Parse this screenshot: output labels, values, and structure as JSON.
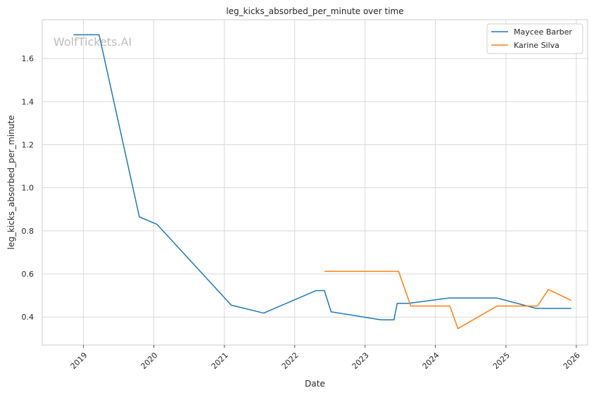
{
  "chart_data": {
    "type": "line",
    "title": "leg_kicks_absorbed_per_minute over time",
    "xlabel": "Date",
    "ylabel": "leg_kicks_absorbed_per_minute",
    "watermark": "WolfTickets.AI",
    "xlim": [
      "2018-06-01",
      "2026-03-01"
    ],
    "ylim": [
      0.27,
      1.78
    ],
    "x_ticks": [
      "2019",
      "2020",
      "2021",
      "2022",
      "2023",
      "2024",
      "2025",
      "2026"
    ],
    "y_ticks": [
      "0.4",
      "0.6",
      "0.8",
      "1.0",
      "1.2",
      "1.4",
      "1.6"
    ],
    "grid": true,
    "legend_position": "top-right",
    "series": [
      {
        "name": "Maycee Barber",
        "color": "#1f77b4",
        "points": [
          {
            "x": "2018-11-10",
            "y": 1.71
          },
          {
            "x": "2019-03-23",
            "y": 1.71
          },
          {
            "x": "2019-10-18",
            "y": 0.865
          },
          {
            "x": "2020-01-18",
            "y": 0.83
          },
          {
            "x": "2021-02-06",
            "y": 0.455
          },
          {
            "x": "2021-07-24",
            "y": 0.418
          },
          {
            "x": "2022-04-23",
            "y": 0.523
          },
          {
            "x": "2022-06-04",
            "y": 0.523
          },
          {
            "x": "2022-07-09",
            "y": 0.424
          },
          {
            "x": "2023-03-25",
            "y": 0.387
          },
          {
            "x": "2023-05-31",
            "y": 0.387
          },
          {
            "x": "2023-06-17",
            "y": 0.463
          },
          {
            "x": "2023-08-13",
            "y": 0.463
          },
          {
            "x": "2024-03-09",
            "y": 0.488
          },
          {
            "x": "2024-11-16",
            "y": 0.488
          },
          {
            "x": "2025-06-07",
            "y": 0.44
          },
          {
            "x": "2025-12-06",
            "y": 0.44
          }
        ]
      },
      {
        "name": "Karine Silva",
        "color": "#ff7f0e",
        "points": [
          {
            "x": "2022-06-04",
            "y": 0.612
          },
          {
            "x": "2023-06-24",
            "y": 0.612
          },
          {
            "x": "2023-08-26",
            "y": 0.451
          },
          {
            "x": "2024-03-16",
            "y": 0.451
          },
          {
            "x": "2024-04-27",
            "y": 0.346
          },
          {
            "x": "2024-11-16",
            "y": 0.451
          },
          {
            "x": "2025-06-14",
            "y": 0.451
          },
          {
            "x": "2025-08-09",
            "y": 0.528
          },
          {
            "x": "2025-12-06",
            "y": 0.477
          }
        ]
      }
    ]
  }
}
